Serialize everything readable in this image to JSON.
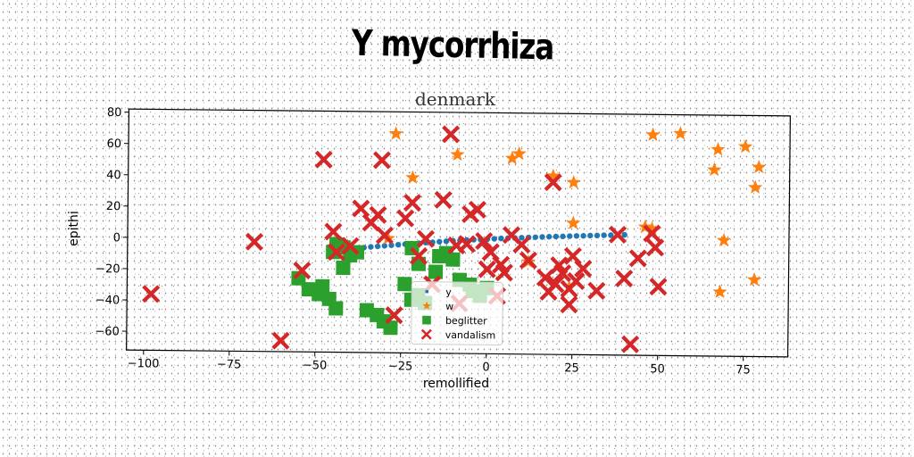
{
  "chart_data": {
    "type": "scatter",
    "title": "Y mycorrhiza",
    "subtitle": "denmark",
    "xlabel": "remollified",
    "ylabel": "epithi",
    "xlim": [
      -105,
      88
    ],
    "ylim": [
      -72,
      82
    ],
    "x_ticks": [
      -100,
      -75,
      -50,
      -25,
      0,
      25,
      50,
      75
    ],
    "y_ticks": [
      -60,
      -40,
      -20,
      0,
      20,
      40,
      60,
      80
    ],
    "x_tick_labels": [
      "−100",
      "−75",
      "−50",
      "−25",
      "0",
      "25",
      "50",
      "75"
    ],
    "y_tick_labels": [
      "−60",
      "−40",
      "−20",
      "0",
      "20",
      "40",
      "60",
      "80"
    ],
    "grid": false,
    "legend_position": "lower-center",
    "series": [
      {
        "name": "y",
        "marker": "circle",
        "color": "#1f77b4",
        "x": [
          -38,
          -36,
          -34,
          -32,
          -30,
          -28,
          -26,
          -24,
          -22,
          -20,
          -18,
          -16,
          -14,
          -12,
          -10,
          -8,
          -6,
          -4,
          -2,
          0,
          2,
          4,
          6,
          8,
          10,
          12,
          14,
          16,
          18,
          20,
          22,
          24,
          26,
          28,
          30,
          32,
          34,
          36,
          38,
          40
        ],
        "y": [
          -5.5,
          -5.0,
          -4.5,
          -4.1,
          -3.7,
          -3.3,
          -2.9,
          -2.5,
          -2.1,
          -1.8,
          -1.4,
          -1.1,
          -0.7,
          -0.4,
          -0.1,
          0.2,
          0.5,
          0.8,
          1.0,
          1.3,
          1.5,
          1.8,
          2.0,
          2.2,
          2.4,
          2.6,
          2.8,
          3.0,
          3.2,
          3.4,
          3.5,
          3.7,
          3.9,
          4.0,
          4.2,
          4.3,
          4.5,
          4.6,
          4.8,
          4.9
        ]
      },
      {
        "name": "w",
        "marker": "star",
        "color": "#ff7f0e",
        "x": [
          -27,
          -22,
          -9,
          7,
          9,
          19,
          25,
          25,
          -29,
          12,
          24,
          46,
          48,
          56,
          66,
          67,
          75,
          78,
          79,
          69,
          68,
          78,
          48
        ],
        "y": [
          68,
          40,
          55,
          53,
          56,
          42,
          38,
          12,
          1,
          -13,
          -29,
          10,
          69,
          70,
          47,
          60,
          62,
          36,
          49,
          2,
          -31,
          -23,
          9
        ],
        "size": 9
      },
      {
        "name": "beglitter",
        "marker": "square",
        "color": "#2ca02c",
        "x": [
          -44,
          -45,
          -42,
          -40,
          -38,
          -55,
          -52,
          -49,
          -48,
          -46,
          -44,
          -42,
          -35,
          -32,
          -30,
          -28,
          -24,
          -22,
          -20,
          -18,
          -14,
          -12,
          -8,
          -5,
          -4,
          -2,
          0,
          -20,
          -15,
          -22,
          -10
        ],
        "y": [
          -3,
          -8,
          -5,
          -10,
          -8,
          -25,
          -32,
          -35,
          -30,
          -38,
          -44,
          -18,
          -45,
          -48,
          -52,
          -56,
          -28,
          -38,
          -35,
          -40,
          -10,
          -8,
          -25,
          -28,
          -32,
          -35,
          -30,
          -15,
          -20,
          -5,
          -12
        ]
      },
      {
        "name": "vandalism",
        "marker": "x",
        "color": "#d62728",
        "x": [
          -98,
          -68,
          -60,
          -54,
          -48,
          -44,
          -37,
          -34,
          -32,
          -31,
          -27,
          -24,
          -22,
          -20,
          -18,
          -13,
          -11,
          -9,
          -6,
          -5,
          -3,
          -1,
          1,
          4,
          5,
          7,
          10,
          17,
          18,
          19,
          20,
          21,
          22,
          24,
          25,
          26,
          28,
          32,
          38,
          40,
          42,
          48,
          49,
          50,
          -45,
          -40,
          -30,
          3,
          24,
          44,
          -8,
          0,
          -16,
          12
        ],
        "y": [
          -36,
          -2,
          -65,
          -20,
          51,
          -8,
          20,
          11,
          16,
          51,
          -48,
          14,
          24,
          -10,
          1,
          26,
          68,
          -3,
          -2,
          17,
          20,
          0,
          -7,
          -15,
          -20,
          4,
          -2,
          -23,
          -32,
          38,
          -27,
          -15,
          -20,
          -40,
          -9,
          -25,
          -17,
          -31,
          5,
          -23,
          -65,
          6,
          -3,
          -28,
          5,
          -4,
          3,
          -35,
          -30,
          -10,
          -40,
          -18,
          -28,
          -12
        ]
      }
    ]
  }
}
